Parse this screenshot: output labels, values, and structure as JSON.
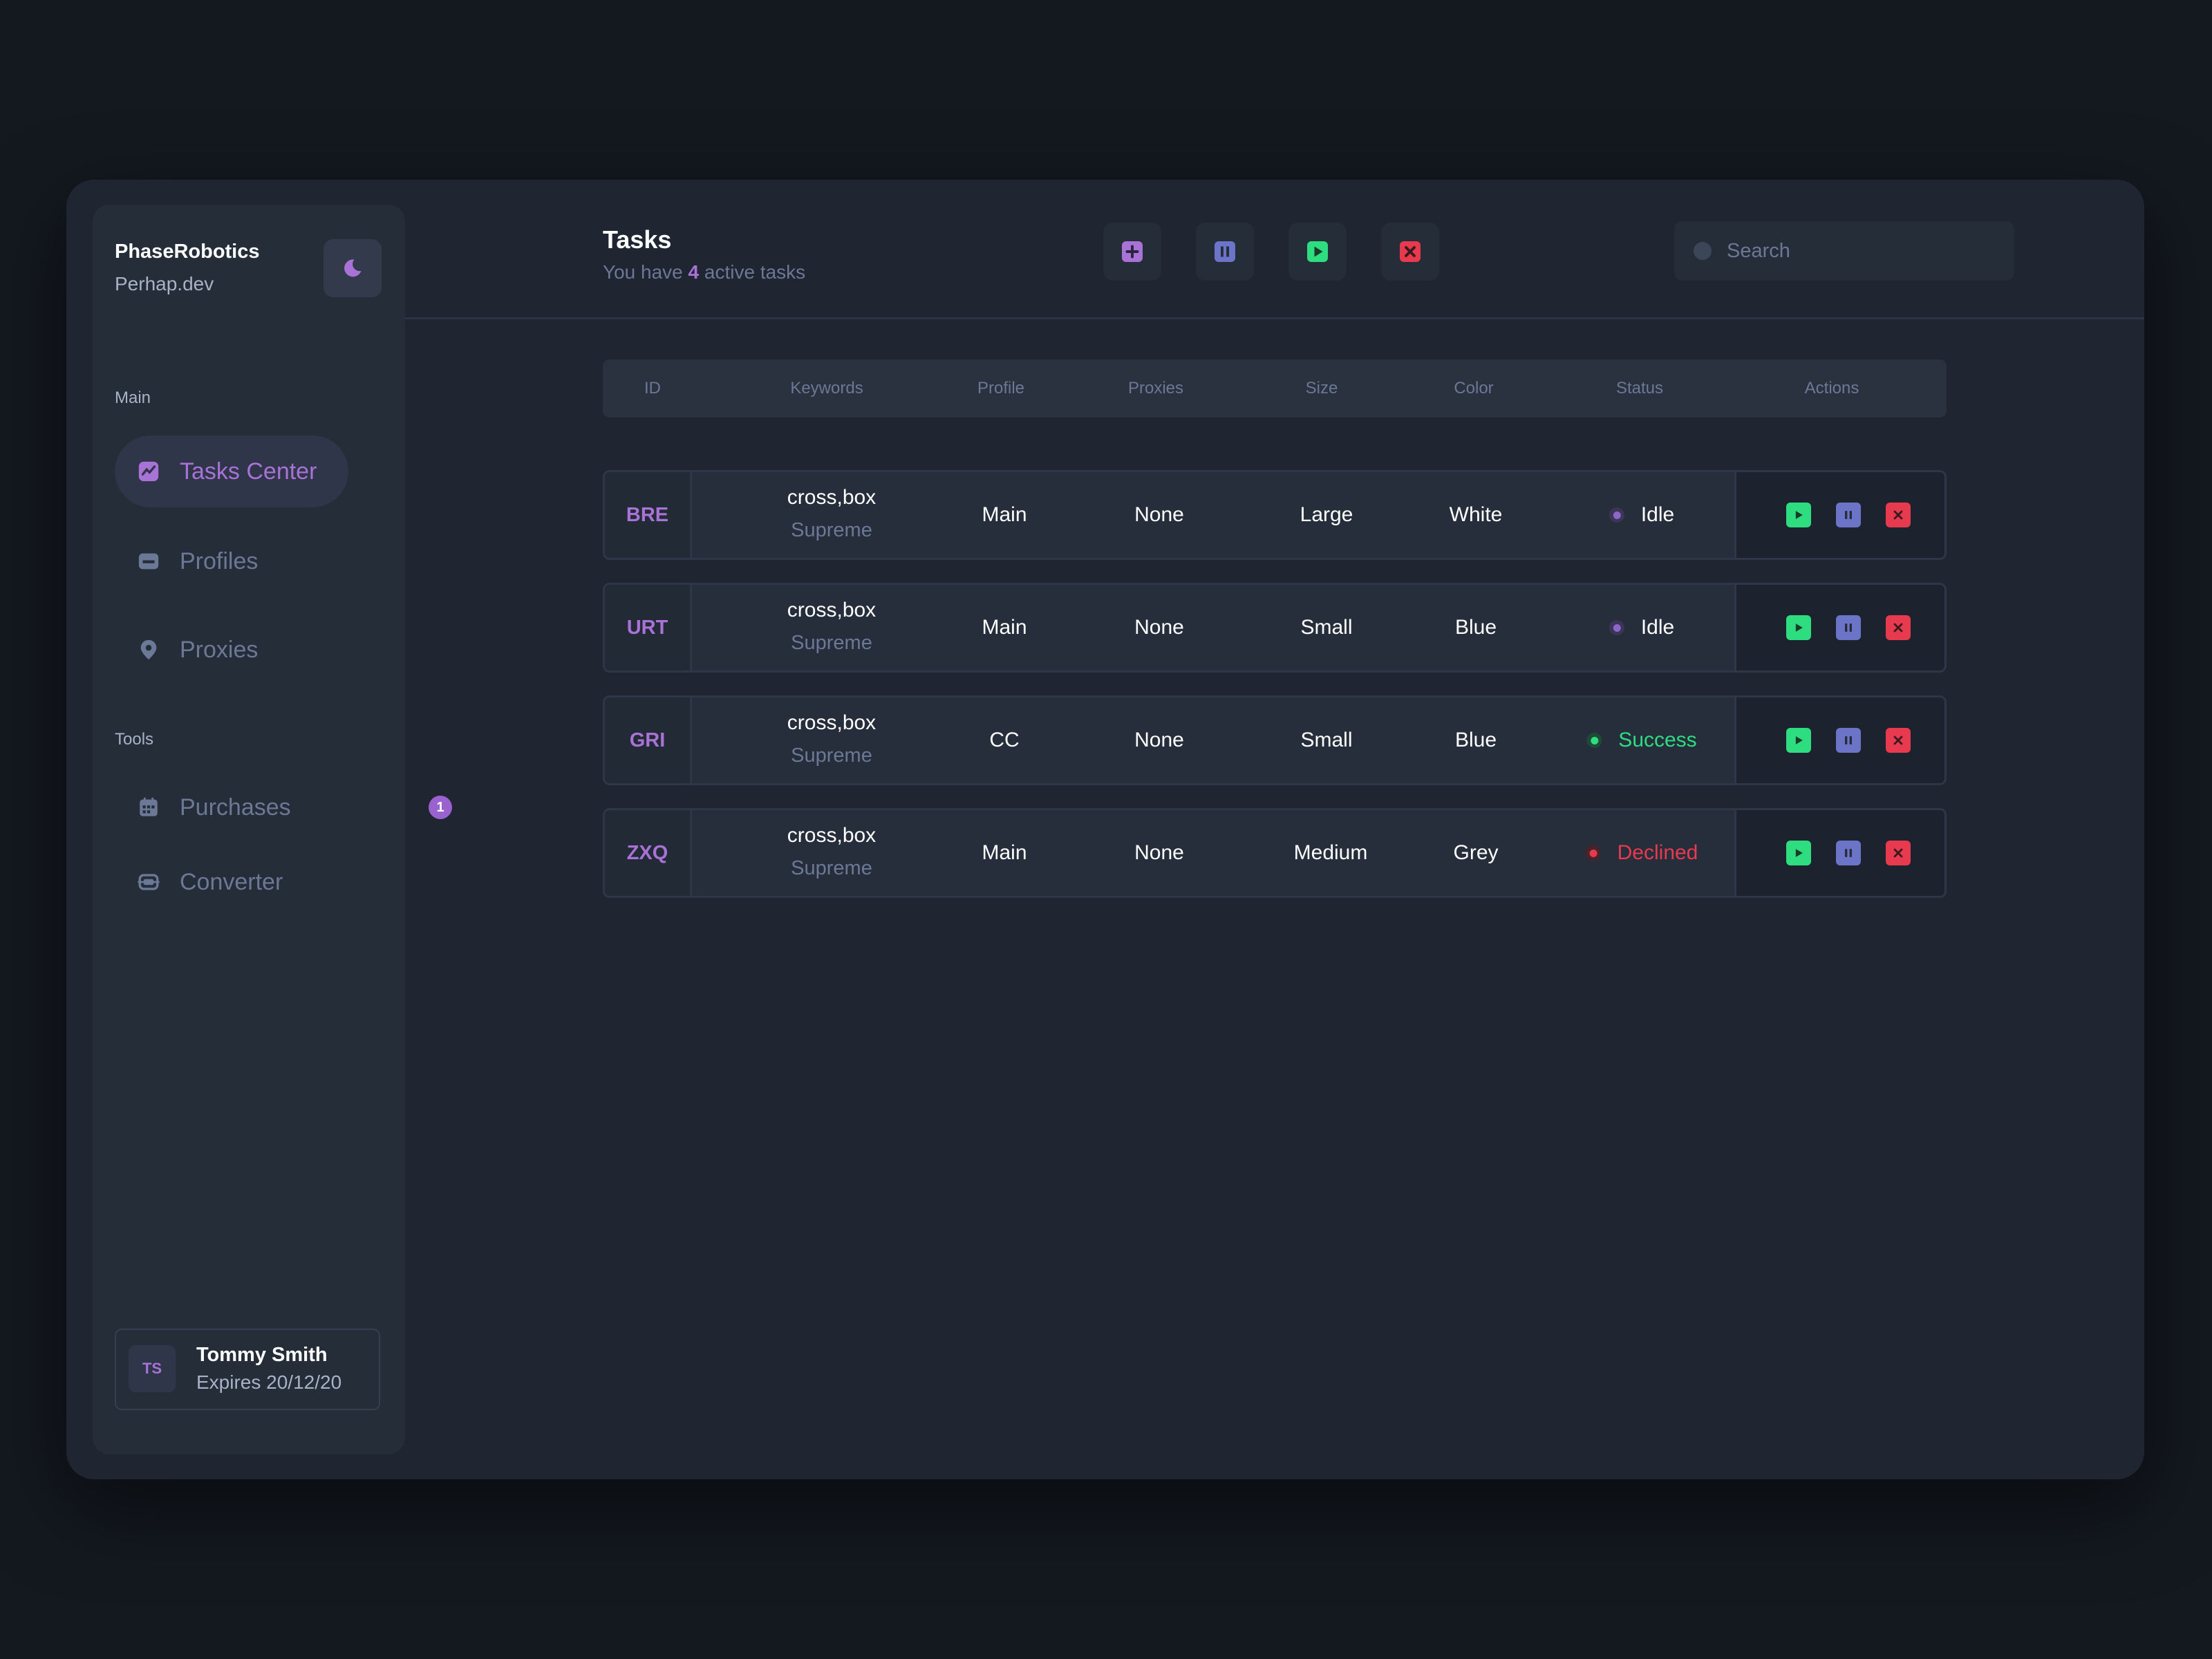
{
  "brand": {
    "name": "PhaseRobotics",
    "sub": "Perhap.dev"
  },
  "sidebar": {
    "main_label": "Main",
    "tools_label": "Tools",
    "items": [
      {
        "label": "Tasks Center",
        "icon": "chart-icon"
      },
      {
        "label": "Profiles",
        "icon": "card-icon"
      },
      {
        "label": "Proxies",
        "icon": "location-pin-icon"
      }
    ],
    "tools": [
      {
        "label": "Purchases",
        "icon": "calendar-icon",
        "badge": "1"
      },
      {
        "label": "Converter",
        "icon": "converter-icon"
      }
    ]
  },
  "user": {
    "initials": "TS",
    "name": "Tommy Smith",
    "expires": "Expires 20/12/20"
  },
  "header": {
    "title": "Tasks",
    "subtitle_prefix": "You have",
    "active_count": "4",
    "subtitle_suffix": "active tasks",
    "search_placeholder": "Search"
  },
  "colors": {
    "accent": "#a872d6",
    "success": "#2ddd7f",
    "danger": "#e83a4e",
    "pause": "#6c74c8",
    "idle": "#8c67c9"
  },
  "table": {
    "columns": [
      "ID",
      "Keywords",
      "Profile",
      "Proxies",
      "Size",
      "Color",
      "Status",
      "Actions"
    ],
    "rows": [
      {
        "id": "BRE",
        "keywords": "cross,box",
        "site": "Supreme",
        "profile": "Main",
        "proxies": "None",
        "size": "Large",
        "color": "White",
        "status": "Idle"
      },
      {
        "id": "URT",
        "keywords": "cross,box",
        "site": "Supreme",
        "profile": "Main",
        "proxies": "None",
        "size": "Small",
        "color": "Blue",
        "status": "Idle"
      },
      {
        "id": "GRI",
        "keywords": "cross,box",
        "site": "Supreme",
        "profile": "CC",
        "proxies": "None",
        "size": "Small",
        "color": "Blue",
        "status": "Success"
      },
      {
        "id": "ZXQ",
        "keywords": "cross,box",
        "site": "Supreme",
        "profile": "Main",
        "proxies": "None",
        "size": "Medium",
        "color": "Grey",
        "status": "Declined"
      }
    ]
  }
}
